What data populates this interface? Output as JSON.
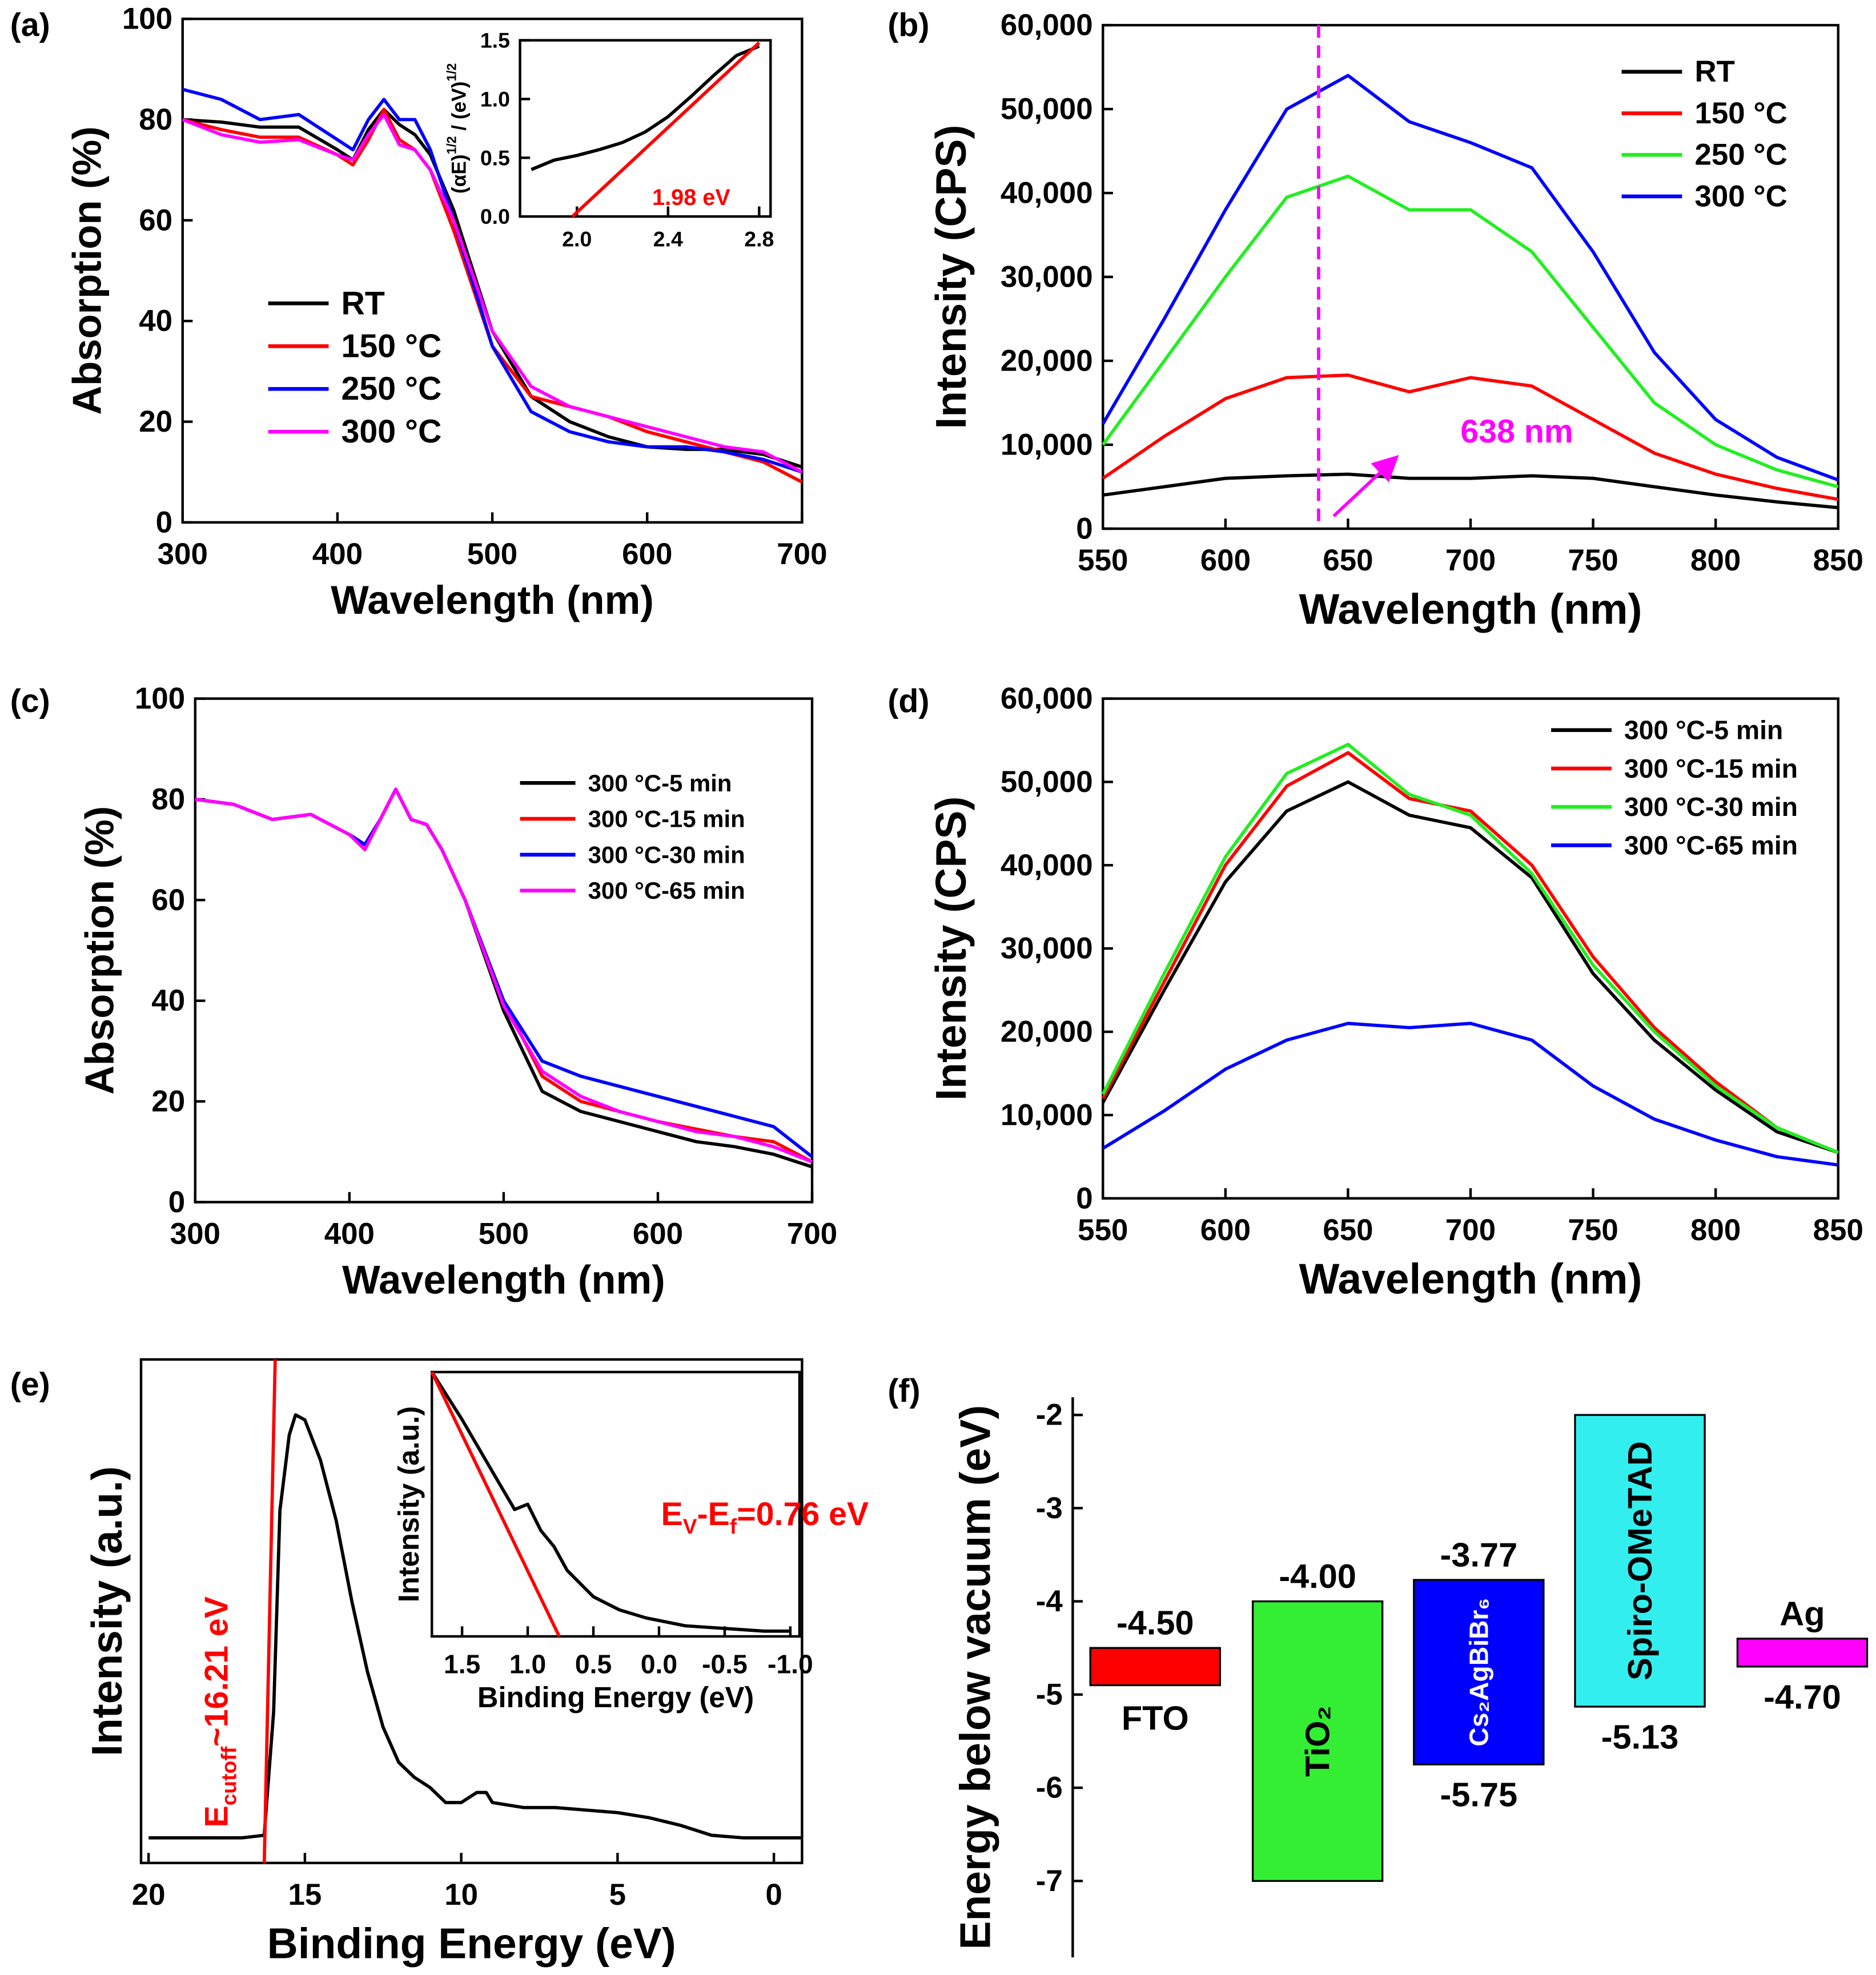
{
  "chart_data": [
    {
      "type": "line",
      "panel": "(a)",
      "xlabel": "Wavelength (nm)",
      "ylabel": "Absorption (%)",
      "xlim": [
        300,
        700
      ],
      "ylim": [
        0,
        100
      ],
      "xticks": [
        300,
        400,
        500,
        600,
        700
      ],
      "yticks": [
        0,
        20,
        40,
        60,
        80,
        100
      ],
      "legend": "center-left",
      "x": [
        300,
        325,
        350,
        375,
        400,
        410,
        420,
        430,
        440,
        450,
        460,
        475,
        500,
        525,
        550,
        575,
        600,
        625,
        650,
        675,
        700
      ],
      "series": [
        {
          "name": "RT",
          "color": "#000000",
          "values": [
            80,
            79.5,
            78.5,
            78.5,
            74,
            72,
            78,
            82,
            79,
            77,
            73,
            62,
            38,
            25,
            20,
            17,
            15,
            14.5,
            14.5,
            13.5,
            11
          ]
        },
        {
          "name": "150 °C",
          "color": "#ff0000",
          "values": [
            80,
            78,
            76.5,
            76.5,
            73,
            71,
            76,
            82,
            76,
            74,
            70,
            58,
            35,
            25,
            23,
            21,
            18,
            16,
            14,
            12,
            8
          ]
        },
        {
          "name": "250 °C",
          "color": "#0000ff",
          "values": [
            86,
            84,
            80,
            81,
            76,
            74,
            80,
            84,
            80,
            80,
            74,
            60,
            35,
            22,
            18,
            16,
            15,
            15,
            14,
            12.5,
            10
          ]
        },
        {
          "name": "300 °C",
          "color": "#ff00ff",
          "values": [
            80,
            77,
            75.5,
            76,
            73,
            72,
            77,
            81,
            75,
            74,
            70,
            60,
            38,
            27,
            23,
            21,
            19,
            17,
            15,
            14,
            10
          ]
        }
      ]
    },
    {
      "type": "line",
      "ylabel": [
        {
          "text": "(αE)"
        },
        {
          "text": "1/2",
          "sup": true
        },
        {
          "text": " / (eV)"
        },
        {
          "text": "1/2",
          "sup": true
        }
      ],
      "xlim": [
        1.75,
        2.85
      ],
      "ylim": [
        0,
        1.5
      ],
      "xticks": [
        {
          "value": 2,
          "label": "2.0"
        },
        2.4,
        2.8
      ],
      "yticks": [
        {
          "value": 0,
          "label": "0.0"
        },
        0.5,
        {
          "value": 1,
          "label": "1.0"
        },
        1.5
      ],
      "x": [
        1.8,
        1.9,
        2.0,
        2.1,
        2.2,
        2.3,
        2.4,
        2.5,
        2.6,
        2.7,
        2.8
      ],
      "series": [
        {
          "color": "#000000",
          "values": [
            0.4,
            0.48,
            0.52,
            0.57,
            0.63,
            0.72,
            0.85,
            1.02,
            1.2,
            1.37,
            1.45
          ]
        }
      ],
      "fit": {
        "color": "#ff0000",
        "x": [
          1.98,
          2.8
        ],
        "y": [
          0,
          1.48
        ]
      },
      "annotation": [
        {
          "text": "1.98 eV"
        }
      ],
      "annotation_color": "#ff0000"
    },
    {
      "type": "line",
      "panel": "(b)",
      "xlabel": "Wavelength (nm)",
      "ylabel": "Intensity (CPS)",
      "xlim": [
        550,
        850
      ],
      "ylim": [
        0,
        60000
      ],
      "xticks": [
        550,
        600,
        650,
        700,
        750,
        800,
        850
      ],
      "yticks": [
        0,
        {
          "value": 10000,
          "label": "10,000"
        },
        {
          "value": 20000,
          "label": "20,000"
        },
        {
          "value": 30000,
          "label": "30,000"
        },
        {
          "value": 40000,
          "label": "40,000"
        },
        {
          "value": 50000,
          "label": "50,000"
        },
        {
          "value": 60000,
          "label": "60,000"
        }
      ],
      "legend": "top-right",
      "x": [
        550,
        575,
        600,
        625,
        650,
        675,
        700,
        725,
        750,
        775,
        800,
        825,
        850
      ],
      "series": [
        {
          "name": "RT",
          "color": "#000000",
          "values": [
            4000,
            5000,
            6000,
            6300,
            6500,
            6000,
            6000,
            6300,
            6000,
            5000,
            4000,
            3200,
            2500
          ]
        },
        {
          "name": "150 °C",
          "color": "#ff0000",
          "values": [
            6000,
            11000,
            15500,
            18000,
            18300,
            16300,
            18000,
            17000,
            13000,
            9000,
            6500,
            4800,
            3500
          ]
        },
        {
          "name": "250 °C",
          "color": "#22ee22",
          "values": [
            10000,
            20000,
            30000,
            39500,
            42000,
            38000,
            38000,
            33000,
            24000,
            15000,
            10000,
            7000,
            5000
          ]
        },
        {
          "name": "300 °C",
          "color": "#0000ff",
          "values": [
            12500,
            25000,
            38000,
            50000,
            54000,
            48500,
            46000,
            43000,
            33000,
            21000,
            13000,
            8500,
            5800
          ]
        }
      ],
      "vline": 638,
      "vline_color": "#ff00ff",
      "annotation": [
        {
          "text": "638 nm"
        }
      ],
      "annotation_color": "#ff00ff"
    },
    {
      "type": "line",
      "panel": "(c)",
      "xlabel": "Wavelength (nm)",
      "ylabel": "Absorption (%)",
      "xlim": [
        300,
        700
      ],
      "ylim": [
        0,
        100
      ],
      "xticks": [
        300,
        400,
        500,
        600,
        700
      ],
      "yticks": [
        0,
        20,
        40,
        60,
        80,
        100
      ],
      "legend": "top-right",
      "x": [
        300,
        325,
        350,
        375,
        400,
        410,
        420,
        430,
        440,
        450,
        460,
        475,
        500,
        525,
        550,
        575,
        600,
        625,
        650,
        675,
        700
      ],
      "series": [
        {
          "name": "300 °C-5 min",
          "color": "#000000",
          "values": [
            80,
            79,
            76,
            77,
            73,
            71,
            76,
            82,
            76,
            75,
            70,
            60,
            38,
            22,
            18,
            16,
            14,
            12,
            11,
            9.5,
            7
          ]
        },
        {
          "name": "300 °C-15 min",
          "color": "#ff0000",
          "values": [
            80,
            79,
            76,
            77,
            73,
            71,
            76,
            82,
            76,
            75,
            70,
            60,
            40,
            25,
            20,
            18,
            16,
            14.5,
            13,
            12,
            8
          ]
        },
        {
          "name": "300 °C-30 min",
          "color": "#0000ff",
          "values": [
            80,
            79,
            76,
            77,
            73,
            71,
            76,
            82,
            76,
            75,
            70,
            60,
            40,
            28,
            25,
            23,
            21,
            19,
            17,
            15,
            9
          ]
        },
        {
          "name": "300 °C-65 min",
          "color": "#ff00ff",
          "values": [
            80,
            79,
            76,
            77,
            73,
            70,
            76,
            82,
            76,
            75,
            70,
            60,
            39,
            26,
            21,
            18,
            16,
            14,
            13,
            11,
            8
          ]
        }
      ]
    },
    {
      "type": "line",
      "panel": "(d)",
      "xlabel": "Wavelength (nm)",
      "ylabel": "Intensity (CPS)",
      "xlim": [
        550,
        850
      ],
      "ylim": [
        0,
        60000
      ],
      "xticks": [
        550,
        600,
        650,
        700,
        750,
        800,
        850
      ],
      "yticks": [
        0,
        {
          "value": 10000,
          "label": "10,000"
        },
        {
          "value": 20000,
          "label": "20,000"
        },
        {
          "value": 30000,
          "label": "30,000"
        },
        {
          "value": 40000,
          "label": "40,000"
        },
        {
          "value": 50000,
          "label": "50,000"
        },
        {
          "value": 60000,
          "label": "60,000"
        }
      ],
      "legend": "top-right",
      "x": [
        550,
        575,
        600,
        625,
        650,
        675,
        700,
        725,
        750,
        775,
        800,
        825,
        850
      ],
      "series": [
        {
          "name": "300 °C-5 min",
          "color": "#000000",
          "values": [
            11500,
            25000,
            38000,
            46500,
            50000,
            46000,
            44500,
            38500,
            27000,
            19000,
            13000,
            8000,
            5500
          ]
        },
        {
          "name": "300 °C-15 min",
          "color": "#ff0000",
          "values": [
            12000,
            26000,
            40000,
            49500,
            53500,
            48000,
            46500,
            40000,
            29000,
            20500,
            14000,
            8500,
            5500
          ]
        },
        {
          "name": "300 °C-30 min",
          "color": "#22ee22",
          "values": [
            12500,
            27000,
            41000,
            51000,
            54500,
            48500,
            46000,
            39000,
            28000,
            20000,
            13500,
            8500,
            5500
          ]
        },
        {
          "name": "300 °C-65 min",
          "color": "#0000ff",
          "values": [
            6000,
            10500,
            15500,
            19000,
            21000,
            20500,
            21000,
            19000,
            13500,
            9500,
            7000,
            5000,
            4000
          ]
        }
      ]
    },
    {
      "type": "line",
      "panel": "(e)",
      "xlabel": "Binding Energy (eV)",
      "ylabel": "Intensity (a.u.)",
      "xlim": [
        20.24,
        -0.9
      ],
      "ylim": [
        0,
        100
      ],
      "xticks": [
        20,
        15,
        10,
        5,
        0
      ],
      "x": [
        20,
        17,
        16.3,
        16,
        15.8,
        15.5,
        15.3,
        15,
        14.5,
        14,
        13.5,
        13,
        12.5,
        12,
        11.5,
        11,
        10.5,
        10,
        9.5,
        9.2,
        9,
        8,
        7,
        6,
        5,
        4,
        3,
        2,
        1,
        0,
        -0.9
      ],
      "series": [
        {
          "color": "#000000",
          "values": [
            5,
            5,
            5.5,
            30,
            70,
            85,
            89,
            88,
            80,
            68,
            52,
            38,
            27,
            20,
            17,
            15,
            12,
            12,
            14,
            14,
            12,
            11,
            11,
            10.5,
            10,
            9,
            7.5,
            5.5,
            5,
            5,
            5
          ]
        }
      ],
      "fit": {
        "color": "#ff0000",
        "x": [
          16.3,
          15.95
        ],
        "y": [
          0,
          100
        ]
      },
      "annotation": [
        {
          "text": "E"
        },
        {
          "text": "cutoff",
          "sub": true
        },
        {
          "text": "~16.21 eV"
        }
      ],
      "annotation_color": "#ff0000"
    },
    {
      "type": "line",
      "xlabel": "Binding Energy (eV)",
      "ylabel": "Intensity (a.u.)",
      "xlim": [
        1.73,
        -1.07
      ],
      "ylim": [
        0,
        100
      ],
      "xticks": [
        1.5,
        {
          "value": 1,
          "label": "1.0"
        },
        0.5,
        {
          "value": 0,
          "label": "0.0"
        },
        -0.5,
        {
          "value": -1,
          "label": "-1.0"
        }
      ],
      "x": [
        1.73,
        1.5,
        1.3,
        1.1,
        1.0,
        0.9,
        0.8,
        0.7,
        0.5,
        0.3,
        0.1,
        -0.2,
        -0.5,
        -0.8,
        -1.0
      ],
      "series": [
        {
          "color": "#000000",
          "values": [
            100,
            82,
            65,
            48,
            50,
            40,
            34,
            25,
            15,
            10,
            7,
            4,
            3,
            2,
            2
          ]
        }
      ],
      "fit": {
        "color": "#ff0000",
        "x": [
          1.73,
          0.76
        ],
        "y": [
          100,
          0
        ]
      },
      "annotation": [
        {
          "text": "E"
        },
        {
          "text": "V",
          "sub": true
        },
        {
          "text": "-E"
        },
        {
          "text": "f",
          "sub": true
        },
        {
          "text": "=0.76 eV"
        }
      ],
      "annotation_color": "#ff0000"
    },
    {
      "type": "band",
      "panel": "(f)",
      "ylabel": "Energy below vacuum (eV)",
      "ylim": [
        -7.82,
        -1.81
      ],
      "yticks": [
        -2,
        -3,
        -4,
        -5,
        -6,
        -7
      ],
      "categories": [
        "FTO",
        "TiO₂",
        "Cs₂AgBiBr₆",
        "Spiro-OMeTAD",
        "Ag"
      ],
      "colors": [
        "#ff0000",
        "#33ee33",
        "#0000ff",
        "#33eeee",
        "#ff00ff"
      ],
      "top": [
        -4.5,
        -4.0,
        -3.77,
        -2.0,
        -4.4
      ],
      "bottom": [
        -4.9,
        -7.0,
        -5.75,
        -5.13,
        -4.7
      ],
      "top_labels": [
        "-4.50",
        "-4.00",
        "-3.77",
        null,
        null
      ],
      "bottom_labels": [
        null,
        null,
        "-5.75",
        "-5.13",
        "-4.70"
      ]
    }
  ]
}
